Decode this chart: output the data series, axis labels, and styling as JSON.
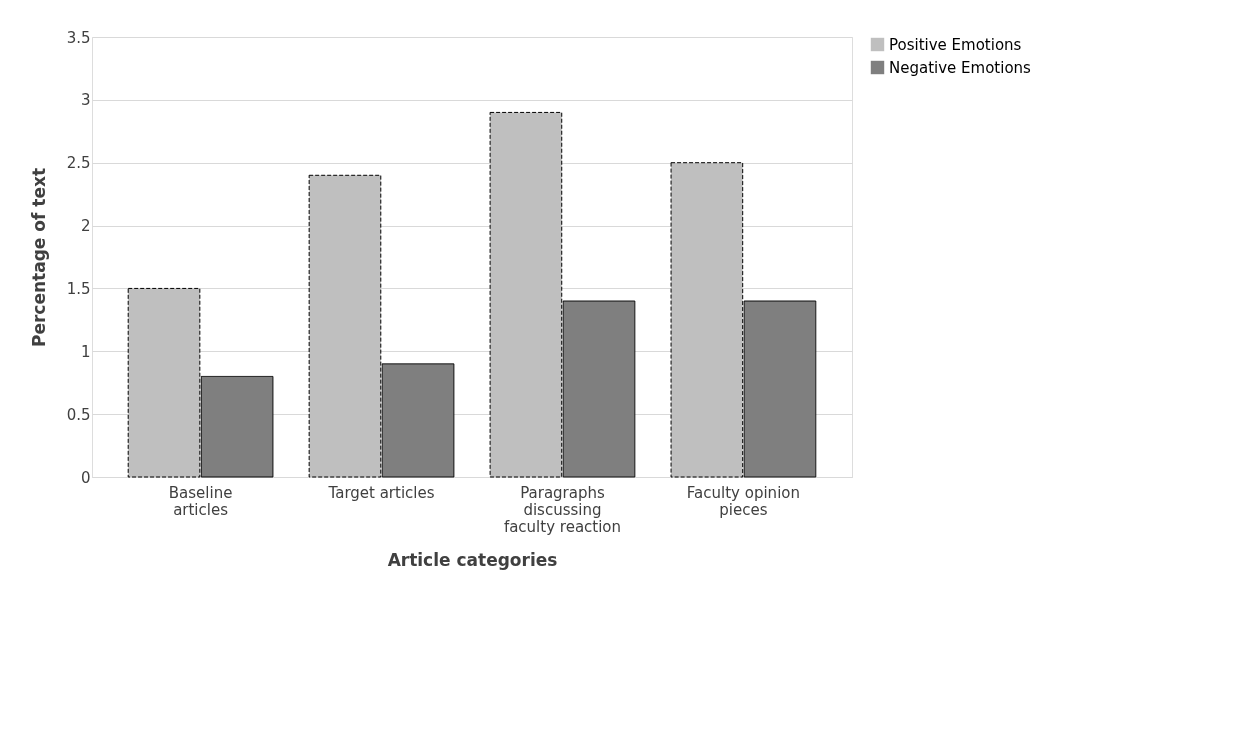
{
  "chart_data": {
    "type": "bar",
    "xlabel": "Article categories",
    "ylabel": "Percentage of text",
    "categories": [
      "Baseline articles",
      "Target articles",
      "Paragraphs discussing faculty reaction",
      "Faculty opinion pieces"
    ],
    "series": [
      {
        "name": "Positive Emotions",
        "color": "#bfbfbf",
        "line_style": "dashed",
        "values": [
          1.5,
          2.4,
          2.9,
          2.5
        ]
      },
      {
        "name": "Negative Emotions",
        "color": "#7f7f7f",
        "line_style": "solid",
        "values": [
          0.8,
          0.9,
          1.4,
          1.4
        ]
      }
    ],
    "ylim": [
      0,
      3.5
    ],
    "yticks": [
      0,
      0.5,
      1,
      1.5,
      2,
      2.5,
      3,
      3.5
    ],
    "grid": "y",
    "legend": "right"
  }
}
